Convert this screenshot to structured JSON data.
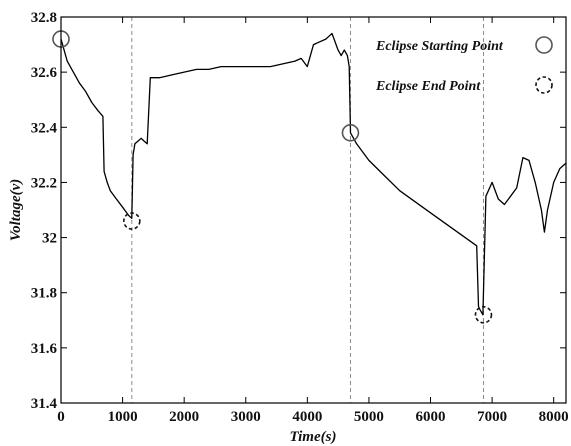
{
  "chart_data": {
    "type": "line",
    "title": "",
    "xlabel": "Time(s)",
    "ylabel": "Voltage(v)",
    "xlim": [
      0,
      8200
    ],
    "ylim": [
      31.4,
      32.8
    ],
    "x_ticks": [
      0,
      1000,
      2000,
      3000,
      4000,
      5000,
      6000,
      7000,
      8000
    ],
    "y_ticks": [
      31.4,
      31.6,
      31.8,
      32,
      32.2,
      32.4,
      32.6,
      32.8
    ],
    "x_tick_labels": [
      "0",
      "1000",
      "2000",
      "3000",
      "4000",
      "5000",
      "6000",
      "7000",
      "8000"
    ],
    "y_tick_labels": [
      "31.4",
      "31.6",
      "31.8",
      "32",
      "32.2",
      "32.4",
      "32.6",
      "32.8"
    ],
    "grid": false,
    "legend_position": "top-right",
    "legend": [
      {
        "label": "Eclipse Starting Point",
        "marker": "solid-circle"
      },
      {
        "label": "Eclipse End Point",
        "marker": "dashed-circle"
      }
    ],
    "series": [
      {
        "color": "#000000",
        "x": [
          0,
          100,
          200,
          300,
          400,
          500,
          600,
          680,
          700,
          750,
          800,
          900,
          1000,
          1100,
          1150,
          1170,
          1200,
          1250,
          1300,
          1350,
          1400,
          1450,
          1480,
          1500,
          1600,
          1800,
          2000,
          2200,
          2400,
          2600,
          2800,
          3000,
          3200,
          3400,
          3600,
          3800,
          3900,
          4000,
          4100,
          4200,
          4300,
          4350,
          4400,
          4500,
          4550,
          4600,
          4650,
          4680,
          4700,
          4800,
          5000,
          5500,
          6000,
          6500,
          6750,
          6780,
          6800,
          6850,
          6900,
          7000,
          7100,
          7200,
          7300,
          7400,
          7500,
          7600,
          7700,
          7800,
          7850,
          7900,
          8000,
          8100,
          8200
        ],
        "y": [
          32.72,
          32.64,
          32.6,
          32.56,
          32.53,
          32.49,
          32.46,
          32.44,
          32.24,
          32.2,
          32.17,
          32.14,
          32.11,
          32.08,
          32.07,
          32.3,
          32.34,
          32.35,
          32.36,
          32.35,
          32.34,
          32.58,
          32.58,
          32.58,
          32.58,
          32.59,
          32.6,
          32.61,
          32.61,
          32.62,
          32.62,
          32.62,
          32.62,
          32.62,
          32.63,
          32.64,
          32.65,
          32.62,
          32.7,
          32.71,
          32.72,
          32.73,
          32.74,
          32.68,
          32.66,
          32.68,
          32.66,
          32.62,
          32.38,
          32.34,
          32.28,
          32.17,
          32.09,
          32.01,
          31.97,
          31.75,
          31.74,
          31.72,
          32.15,
          32.2,
          32.14,
          32.12,
          32.15,
          32.18,
          32.29,
          32.28,
          32.2,
          32.1,
          32.02,
          32.1,
          32.2,
          32.25,
          32.27
        ]
      }
    ],
    "annotations": [
      {
        "type": "eclipse-start",
        "x": 0,
        "y": 32.72
      },
      {
        "type": "eclipse-end",
        "x": 1150,
        "y": 32.06
      },
      {
        "type": "eclipse-start",
        "x": 4700,
        "y": 32.38
      },
      {
        "type": "eclipse-end",
        "x": 6860,
        "y": 31.72
      }
    ],
    "vertical_lines": [
      1150,
      4700,
      6860
    ]
  }
}
